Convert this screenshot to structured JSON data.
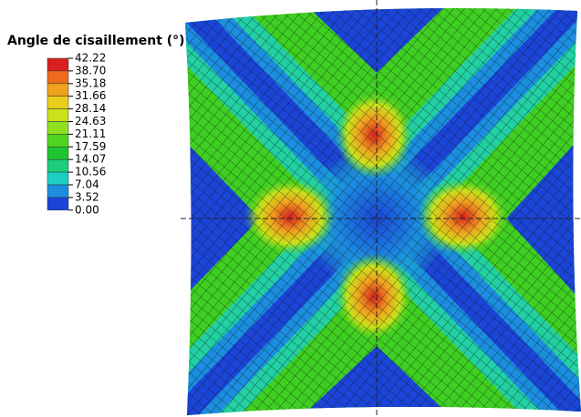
{
  "legend": {
    "title": "Angle de cisaillement (°)",
    "labels": [
      "42.22",
      "38.70",
      "35.18",
      "31.66",
      "28.14",
      "24.63",
      "21.11",
      "17.59",
      "14.07",
      "10.56",
      "7.04",
      "3.52",
      "0.00"
    ],
    "colors": [
      "#d91f1f",
      "#ee6a1c",
      "#f0a21f",
      "#e8cf1c",
      "#c9e21a",
      "#8fe01f",
      "#4fd51f",
      "#1ec531",
      "#1ccd7d",
      "#1bcfc4",
      "#1b8ee0",
      "#1b45d8"
    ]
  }
}
